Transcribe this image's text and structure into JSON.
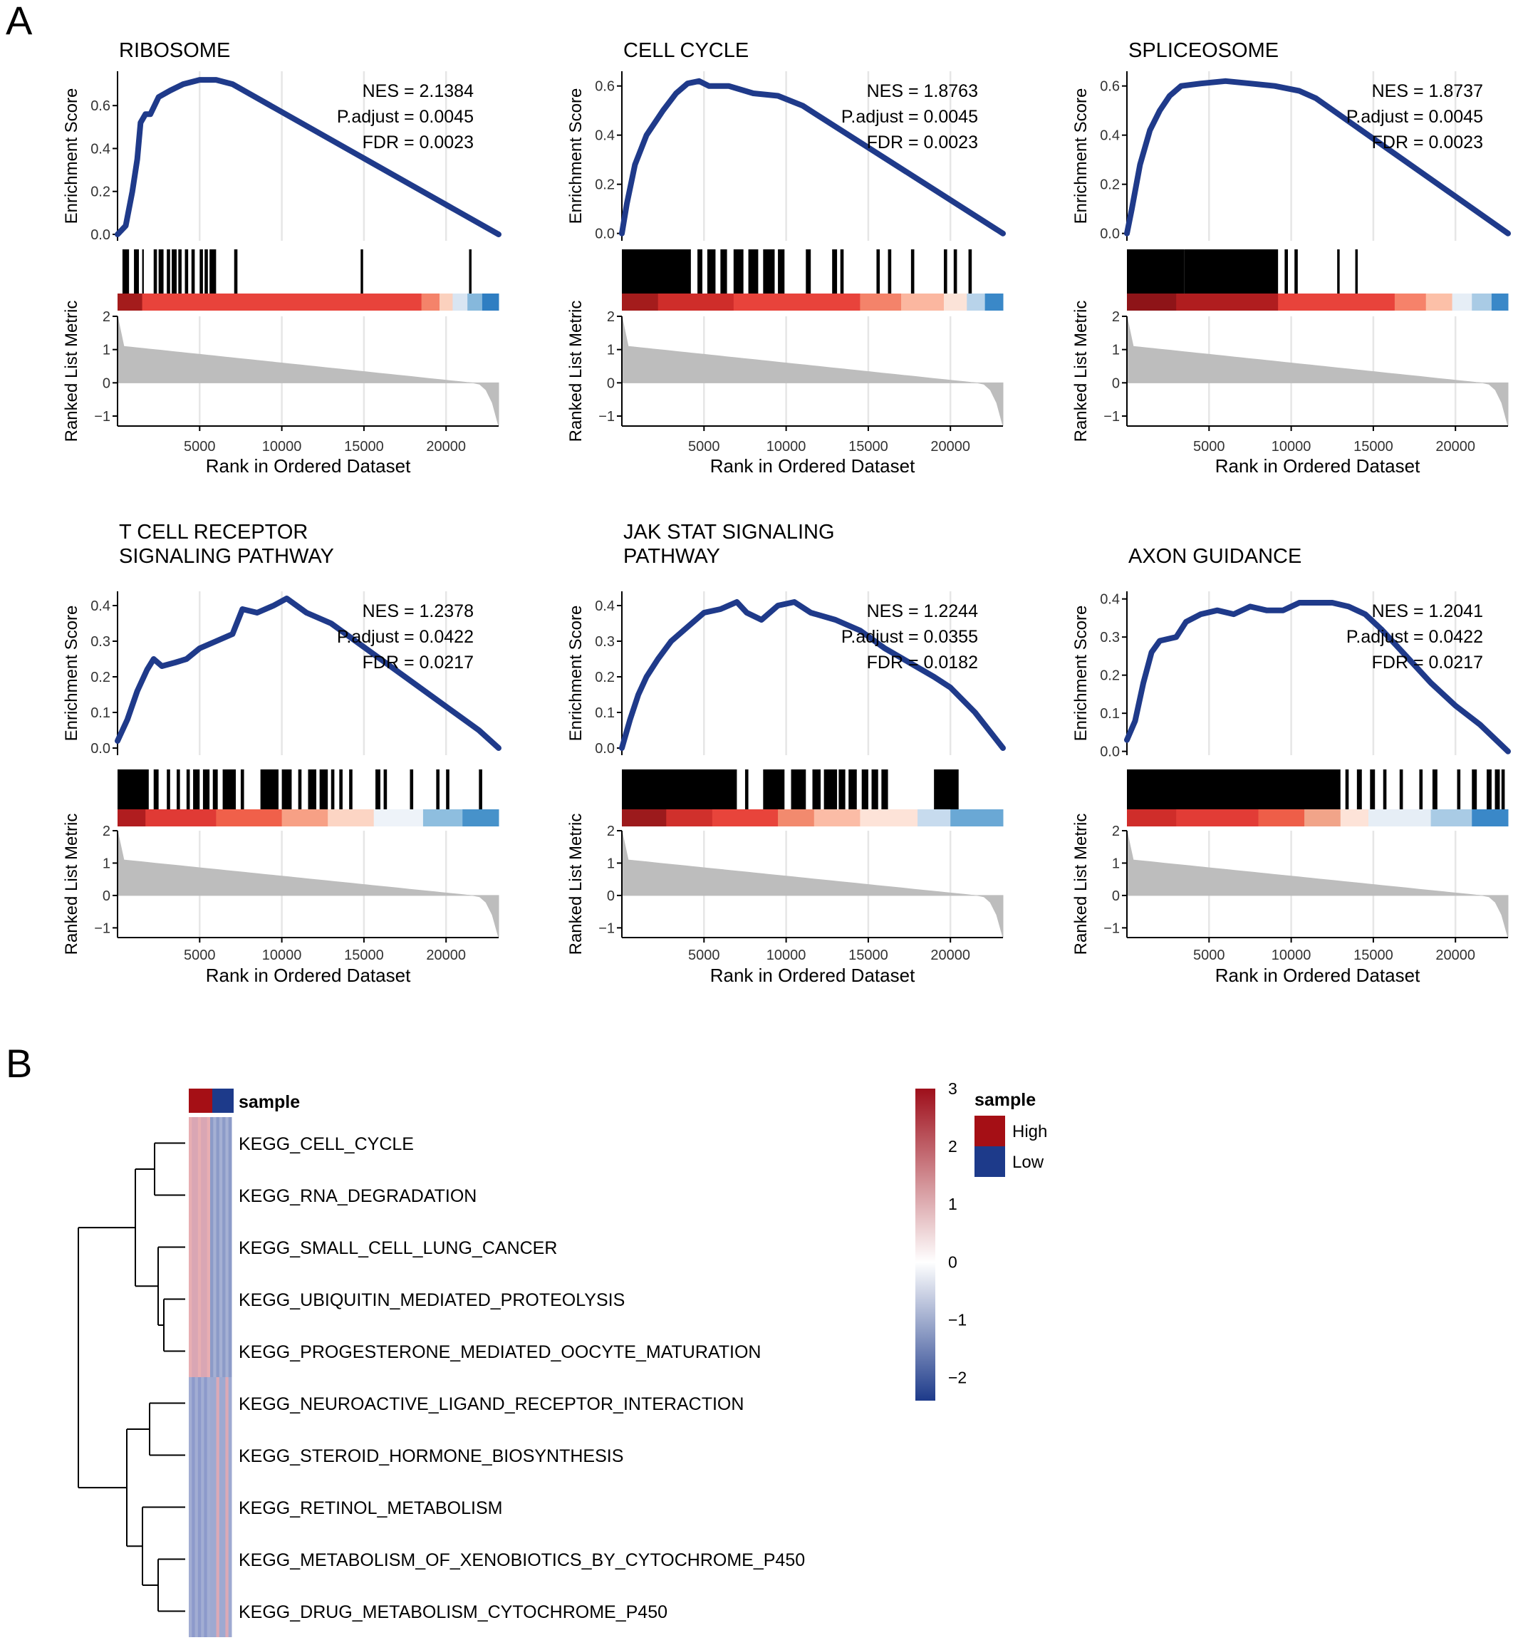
{
  "panel_labels": [
    "A",
    "B"
  ],
  "shared_axes": {
    "es_ylabel": "Enrichment Score",
    "rlm_ylabel": "Ranked List Metric",
    "xlabel": "Rank in Ordered Dataset",
    "x_ticks": [
      5000,
      10000,
      15000,
      20000
    ],
    "x_range": [
      0,
      23200
    ],
    "rlm_ticks": [
      2,
      1,
      0,
      -1
    ],
    "rlm_range": [
      -1.3,
      2.0
    ]
  },
  "chart_data": [
    {
      "type": "line",
      "title": [
        "RIBOSOME"
      ],
      "stats": [
        "NES = 2.1384",
        "P.adjust = 0.0045",
        "FDR = 0.0023"
      ],
      "y_ticks": [
        0.0,
        0.2,
        0.4,
        0.6
      ],
      "ylim": [
        -0.03,
        0.76
      ],
      "curve": [
        [
          0,
          0
        ],
        [
          500,
          0.04
        ],
        [
          900,
          0.2
        ],
        [
          1200,
          0.35
        ],
        [
          1400,
          0.52
        ],
        [
          1700,
          0.56
        ],
        [
          2000,
          0.56
        ],
        [
          2500,
          0.64
        ],
        [
          3200,
          0.67
        ],
        [
          4000,
          0.7
        ],
        [
          5000,
          0.72
        ],
        [
          6000,
          0.72
        ],
        [
          7000,
          0.7
        ],
        [
          23200,
          0
        ]
      ],
      "hits": [
        [
          300,
          700
        ],
        [
          1000,
          1300
        ],
        [
          1500,
          1600
        ],
        [
          2200,
          2400
        ],
        [
          2500,
          2800
        ],
        [
          3000,
          3200
        ],
        [
          3300,
          3600
        ],
        [
          3700,
          3900
        ],
        [
          4100,
          4300
        ],
        [
          4500,
          4700
        ],
        [
          5000,
          5200
        ],
        [
          5300,
          5500
        ],
        [
          5600,
          6000
        ],
        [
          7100,
          7300
        ],
        [
          14800,
          14950
        ],
        [
          21400,
          21550
        ]
      ],
      "heat": [
        [
          0,
          1500,
          "#a41c1c"
        ],
        [
          1500,
          18500,
          "#e8433b"
        ],
        [
          18500,
          19600,
          "#f4836a"
        ],
        [
          19600,
          20400,
          "#fbd1be"
        ],
        [
          20400,
          21300,
          "#d9e5f2"
        ],
        [
          21300,
          22200,
          "#86b8dc"
        ],
        [
          22200,
          23200,
          "#2f7ec2"
        ]
      ]
    },
    {
      "type": "line",
      "title": [
        "CELL CYCLE"
      ],
      "stats": [
        "NES = 1.8763",
        "P.adjust = 0.0045",
        "FDR = 0.0023"
      ],
      "y_ticks": [
        0.0,
        0.2,
        0.4,
        0.6
      ],
      "ylim": [
        -0.03,
        0.66
      ],
      "curve": [
        [
          0,
          0
        ],
        [
          300,
          0.12
        ],
        [
          800,
          0.28
        ],
        [
          1500,
          0.4
        ],
        [
          2500,
          0.5
        ],
        [
          3300,
          0.57
        ],
        [
          4000,
          0.61
        ],
        [
          4700,
          0.62
        ],
        [
          5300,
          0.6
        ],
        [
          6500,
          0.6
        ],
        [
          8000,
          0.57
        ],
        [
          9500,
          0.56
        ],
        [
          11000,
          0.52
        ],
        [
          23200,
          0
        ]
      ],
      "hits": [
        [
          0,
          4200
        ],
        [
          4600,
          4900
        ],
        [
          5200,
          5700
        ],
        [
          6000,
          6400
        ],
        [
          6800,
          7400
        ],
        [
          7700,
          8300
        ],
        [
          8600,
          9300
        ],
        [
          9500,
          9900
        ],
        [
          11200,
          11500
        ],
        [
          12800,
          13100
        ],
        [
          13300,
          13500
        ],
        [
          15500,
          15700
        ],
        [
          16200,
          16400
        ],
        [
          17600,
          17800
        ],
        [
          19600,
          19800
        ],
        [
          20200,
          20400
        ],
        [
          21100,
          21300
        ]
      ],
      "heat": [
        [
          0,
          2200,
          "#a41c1c"
        ],
        [
          2200,
          6800,
          "#cf2d2a"
        ],
        [
          6800,
          14500,
          "#e8433b"
        ],
        [
          14500,
          17000,
          "#f4836a"
        ],
        [
          17000,
          19600,
          "#fbb7a0"
        ],
        [
          19600,
          21000,
          "#fbe3d8"
        ],
        [
          21000,
          22100,
          "#b8d3ea"
        ],
        [
          22100,
          23200,
          "#3a88c8"
        ]
      ]
    },
    {
      "type": "line",
      "title": [
        "SPLICEOSOME"
      ],
      "stats": [
        "NES = 1.8737",
        "P.adjust = 0.0045",
        "FDR = 0.0023"
      ],
      "y_ticks": [
        0.0,
        0.2,
        0.4,
        0.6
      ],
      "ylim": [
        -0.03,
        0.66
      ],
      "curve": [
        [
          0,
          0
        ],
        [
          300,
          0.1
        ],
        [
          800,
          0.28
        ],
        [
          1400,
          0.42
        ],
        [
          2000,
          0.5
        ],
        [
          2600,
          0.56
        ],
        [
          3300,
          0.6
        ],
        [
          4500,
          0.61
        ],
        [
          6000,
          0.62
        ],
        [
          7500,
          0.61
        ],
        [
          9000,
          0.6
        ],
        [
          10500,
          0.58
        ],
        [
          11500,
          0.55
        ],
        [
          23200,
          0
        ]
      ],
      "hits": [
        [
          0,
          3500
        ],
        [
          3500,
          9200
        ],
        [
          9600,
          9800
        ],
        [
          10200,
          10400
        ],
        [
          12800,
          12950
        ],
        [
          13900,
          14050
        ]
      ],
      "heat": [
        [
          0,
          3000,
          "#8e1418"
        ],
        [
          3000,
          9200,
          "#b01d1f"
        ],
        [
          9200,
          16300,
          "#e8433b"
        ],
        [
          16300,
          18200,
          "#f6826a"
        ],
        [
          18200,
          19800,
          "#fcc0a8"
        ],
        [
          19800,
          21000,
          "#e6eef6"
        ],
        [
          21000,
          22200,
          "#a9cbe5"
        ],
        [
          22200,
          23200,
          "#3a88c8"
        ]
      ]
    },
    {
      "type": "line",
      "title": [
        "T CELL RECEPTOR",
        "SIGNALING PATHWAY"
      ],
      "stats": [
        "NES = 1.2378",
        "P.adjust = 0.0422",
        "FDR = 0.0217"
      ],
      "y_ticks": [
        0.0,
        0.1,
        0.2,
        0.3,
        0.4
      ],
      "ylim": [
        -0.02,
        0.44
      ],
      "curve": [
        [
          0,
          0.02
        ],
        [
          600,
          0.08
        ],
        [
          1200,
          0.16
        ],
        [
          1800,
          0.22
        ],
        [
          2200,
          0.25
        ],
        [
          2700,
          0.23
        ],
        [
          3500,
          0.24
        ],
        [
          4200,
          0.25
        ],
        [
          5000,
          0.28
        ],
        [
          6000,
          0.3
        ],
        [
          7000,
          0.32
        ],
        [
          7600,
          0.39
        ],
        [
          8500,
          0.38
        ],
        [
          9500,
          0.4
        ],
        [
          10300,
          0.42
        ],
        [
          11500,
          0.38
        ],
        [
          13000,
          0.35
        ],
        [
          14500,
          0.3
        ],
        [
          16000,
          0.25
        ],
        [
          17500,
          0.2
        ],
        [
          19000,
          0.15
        ],
        [
          20500,
          0.1
        ],
        [
          22000,
          0.05
        ],
        [
          23200,
          0
        ]
      ],
      "hits": [
        [
          0,
          1900
        ],
        [
          2200,
          2500
        ],
        [
          3000,
          3200
        ],
        [
          3600,
          3800
        ],
        [
          4200,
          4400
        ],
        [
          4600,
          5000
        ],
        [
          5200,
          5600
        ],
        [
          5800,
          6100
        ],
        [
          6400,
          7200
        ],
        [
          7500,
          7700
        ],
        [
          8700,
          9800
        ],
        [
          10000,
          10600
        ],
        [
          11000,
          11200
        ],
        [
          11600,
          12100
        ],
        [
          12300,
          12800
        ],
        [
          13000,
          13200
        ],
        [
          13500,
          13700
        ],
        [
          14100,
          14300
        ],
        [
          15700,
          16000
        ],
        [
          16200,
          16400
        ],
        [
          17800,
          18000
        ],
        [
          19400,
          19600
        ],
        [
          20000,
          20200
        ],
        [
          22000,
          22200
        ]
      ],
      "heat": [
        [
          0,
          1700,
          "#b01d1f"
        ],
        [
          1700,
          6000,
          "#e03a35"
        ],
        [
          6000,
          10000,
          "#f0604a"
        ],
        [
          10000,
          12800,
          "#f7a085"
        ],
        [
          12800,
          15600,
          "#fcd5c4"
        ],
        [
          15600,
          18600,
          "#eef3f9"
        ],
        [
          18600,
          21000,
          "#8ebedf"
        ],
        [
          21000,
          23200,
          "#4792ca"
        ]
      ]
    },
    {
      "type": "line",
      "title": [
        "JAK STAT SIGNALING",
        "PATHWAY"
      ],
      "stats": [
        "NES = 1.2244",
        "P.adjust = 0.0355",
        "FDR = 0.0182"
      ],
      "y_ticks": [
        0.0,
        0.1,
        0.2,
        0.3,
        0.4
      ],
      "ylim": [
        -0.02,
        0.44
      ],
      "curve": [
        [
          0,
          0
        ],
        [
          500,
          0.08
        ],
        [
          1000,
          0.15
        ],
        [
          1500,
          0.2
        ],
        [
          2200,
          0.25
        ],
        [
          3000,
          0.3
        ],
        [
          4000,
          0.34
        ],
        [
          5000,
          0.38
        ],
        [
          6000,
          0.39
        ],
        [
          7000,
          0.41
        ],
        [
          7600,
          0.38
        ],
        [
          8500,
          0.36
        ],
        [
          9500,
          0.4
        ],
        [
          10500,
          0.41
        ],
        [
          11500,
          0.38
        ],
        [
          13000,
          0.36
        ],
        [
          14500,
          0.33
        ],
        [
          16000,
          0.28
        ],
        [
          17500,
          0.24
        ],
        [
          19000,
          0.2
        ],
        [
          20000,
          0.17
        ],
        [
          21500,
          0.1
        ],
        [
          23200,
          0
        ]
      ],
      "hits": [
        [
          0,
          7000
        ],
        [
          7500,
          7700
        ],
        [
          8600,
          9900
        ],
        [
          10300,
          11200
        ],
        [
          11600,
          12100
        ],
        [
          12300,
          13100
        ],
        [
          13200,
          13600
        ],
        [
          13800,
          14300
        ],
        [
          14600,
          15000
        ],
        [
          15200,
          15600
        ],
        [
          15800,
          16200
        ],
        [
          19000,
          20500
        ]
      ],
      "heat": [
        [
          0,
          2700,
          "#9c1a1c"
        ],
        [
          2700,
          5500,
          "#d0302c"
        ],
        [
          5500,
          9500,
          "#e8443b"
        ],
        [
          9500,
          11700,
          "#f28a6e"
        ],
        [
          11700,
          14500,
          "#fbbca6"
        ],
        [
          14500,
          18000,
          "#fde3d8"
        ],
        [
          18000,
          20000,
          "#c7dbee"
        ],
        [
          20000,
          23200,
          "#6aa8d5"
        ]
      ]
    },
    {
      "type": "line",
      "title": [
        "AXON GUIDANCE"
      ],
      "stats": [
        "NES = 1.2041",
        "P.adjust = 0.0422",
        "FDR = 0.0217"
      ],
      "y_ticks": [
        0.0,
        0.1,
        0.2,
        0.3,
        0.4
      ],
      "ylim": [
        -0.01,
        0.42
      ],
      "curve": [
        [
          0,
          0.03
        ],
        [
          500,
          0.08
        ],
        [
          1000,
          0.18
        ],
        [
          1500,
          0.26
        ],
        [
          2000,
          0.29
        ],
        [
          3000,
          0.3
        ],
        [
          3600,
          0.34
        ],
        [
          4500,
          0.36
        ],
        [
          5500,
          0.37
        ],
        [
          6500,
          0.36
        ],
        [
          7500,
          0.38
        ],
        [
          8500,
          0.37
        ],
        [
          9500,
          0.37
        ],
        [
          10500,
          0.39
        ],
        [
          11500,
          0.39
        ],
        [
          12500,
          0.39
        ],
        [
          13500,
          0.38
        ],
        [
          14500,
          0.36
        ],
        [
          15500,
          0.32
        ],
        [
          17000,
          0.25
        ],
        [
          18500,
          0.18
        ],
        [
          20000,
          0.12
        ],
        [
          21500,
          0.07
        ],
        [
          23200,
          0
        ]
      ],
      "hits": [
        [
          0,
          13000
        ],
        [
          13300,
          13500
        ],
        [
          14000,
          14300
        ],
        [
          14800,
          15100
        ],
        [
          15600,
          15800
        ],
        [
          16600,
          16800
        ],
        [
          17800,
          18000
        ],
        [
          18600,
          18900
        ],
        [
          20100,
          20300
        ],
        [
          21000,
          21300
        ],
        [
          21900,
          22200
        ],
        [
          22400,
          22700
        ],
        [
          22800,
          23000
        ]
      ],
      "heat": [
        [
          0,
          3000,
          "#cf2d2a"
        ],
        [
          3000,
          8000,
          "#e23c36"
        ],
        [
          8000,
          10800,
          "#ee5e48"
        ],
        [
          10800,
          13000,
          "#f1a489"
        ],
        [
          13000,
          14700,
          "#fde3d8"
        ],
        [
          14700,
          18500,
          "#e6eef6"
        ],
        [
          18500,
          21000,
          "#a9cbe5"
        ],
        [
          21000,
          23200,
          "#3a88c8"
        ]
      ]
    },
    {
      "type": "heatmap",
      "sample_label": "sample",
      "rows": [
        "KEGG_CELL_CYCLE",
        "KEGG_RNA_DEGRADATION",
        "KEGG_SMALL_CELL_LUNG_CANCER",
        "KEGG_UBIQUITIN_MEDIATED_PROTEOLYSIS",
        "KEGG_PROGESTERONE_MEDIATED_OOCYTE_MATURATION",
        "KEGG_NEUROACTIVE_LIGAND_RECEPTOR_INTERACTION",
        "KEGG_STEROID_HORMONE_BIOSYNTHESIS",
        "KEGG_RETINOL_METABOLISM",
        "KEGG_METABOLISM_OF_XENOBIOTICS_BY_CYTOCHROME_P450",
        "KEGG_DRUG_METABOLISM_CYTOCHROME_P450"
      ],
      "row_cluster": [
        1,
        1,
        1,
        1,
        1,
        0,
        0,
        0,
        0,
        0
      ],
      "scale_ticks": [
        "3",
        "2",
        "1",
        "0",
        "−1",
        "−2"
      ],
      "scale_range": [
        -2.4,
        3.0
      ],
      "legend_title": "sample",
      "legend_items": [
        {
          "label": "High",
          "color": "#a50f15"
        },
        {
          "label": "Low",
          "color": "#1d3a8a"
        }
      ],
      "scale_colors": [
        "#9e0f1b",
        "#ffffff",
        "#1d3a8a"
      ]
    }
  ]
}
